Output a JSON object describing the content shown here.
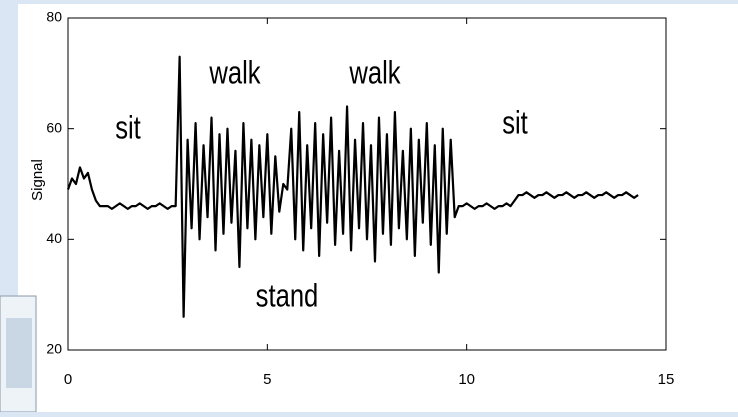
{
  "chart_data": {
    "type": "line",
    "ylabel": "Signal",
    "annotations": [
      "sit",
      "walk",
      "walk",
      "stand",
      "sit"
    ],
    "x": [
      0.0,
      0.1,
      0.2,
      0.3,
      0.4,
      0.5,
      0.6,
      0.7,
      0.8,
      0.9,
      1.0,
      1.1,
      1.2,
      1.3,
      1.4,
      1.5,
      1.6,
      1.7,
      1.8,
      1.9,
      2.0,
      2.1,
      2.2,
      2.3,
      2.4,
      2.5,
      2.6,
      2.7,
      2.8,
      2.9,
      3.0,
      3.1,
      3.2,
      3.3,
      3.4,
      3.5,
      3.6,
      3.7,
      3.8,
      3.9,
      4.0,
      4.1,
      4.2,
      4.3,
      4.4,
      4.5,
      4.6,
      4.7,
      4.8,
      4.9,
      5.0,
      5.1,
      5.2,
      5.3,
      5.4,
      5.5,
      5.6,
      5.7,
      5.8,
      5.9,
      6.0,
      6.1,
      6.2,
      6.3,
      6.4,
      6.5,
      6.6,
      6.7,
      6.8,
      6.9,
      7.0,
      7.1,
      7.2,
      7.3,
      7.4,
      7.5,
      7.6,
      7.7,
      7.8,
      7.9,
      8.0,
      8.1,
      8.2,
      8.3,
      8.4,
      8.5,
      8.6,
      8.7,
      8.8,
      8.9,
      9.0,
      9.1,
      9.2,
      9.3,
      9.4,
      9.5,
      9.6,
      9.7,
      9.8,
      9.9,
      10.0,
      10.1,
      10.2,
      10.3,
      10.4,
      10.5,
      10.6,
      10.7,
      10.8,
      10.9,
      11.0,
      11.1,
      11.2,
      11.3,
      11.4,
      11.5,
      11.6,
      11.7,
      11.8,
      11.9,
      12.0,
      12.1,
      12.2,
      12.3,
      12.4,
      12.5,
      12.6,
      12.7,
      12.8,
      12.9,
      13.0,
      13.1,
      13.2,
      13.3,
      13.4,
      13.5,
      13.6,
      13.7,
      13.8,
      13.9,
      14.0,
      14.1,
      14.2,
      14.3
    ],
    "series": [
      {
        "color": "#000000",
        "values": [
          49,
          51,
          50,
          53,
          51,
          52,
          49,
          47,
          46,
          46,
          46,
          45.5,
          46,
          46.5,
          46,
          45.5,
          46,
          46,
          46.5,
          46,
          45.5,
          46,
          46,
          46.5,
          46,
          45.5,
          46,
          46,
          73,
          26,
          58,
          42,
          61,
          40,
          57,
          44,
          62,
          38,
          59,
          41,
          60,
          43,
          56,
          35,
          61,
          42,
          58,
          40,
          57,
          44,
          59,
          41,
          55,
          45,
          50,
          49,
          60,
          40,
          63,
          38,
          57,
          42,
          61,
          37,
          59,
          43,
          62,
          39,
          56,
          41,
          64,
          38,
          58,
          42,
          61,
          40,
          57,
          36,
          62,
          41,
          59,
          39,
          63,
          42,
          56,
          40,
          60,
          37,
          58,
          43,
          61,
          39,
          57,
          34,
          60,
          41,
          58,
          44,
          46,
          46,
          46.5,
          46,
          45.5,
          46,
          46,
          46.5,
          46,
          45.5,
          46,
          46,
          46.5,
          46,
          47,
          48,
          48,
          48.5,
          48,
          47.5,
          48,
          48,
          48.5,
          48,
          47.5,
          48,
          48,
          48.5,
          48,
          47.5,
          48,
          48,
          48.5,
          48,
          47.5,
          48,
          48,
          48.5,
          48,
          47.5,
          48,
          48,
          48.5,
          48,
          47.5,
          48
        ]
      }
    ],
    "xlim": [
      0,
      15
    ],
    "ylim": [
      20,
      80
    ],
    "xticks": [
      0,
      5,
      10,
      15
    ],
    "yticks": [
      20,
      40,
      60,
      80
    ]
  }
}
